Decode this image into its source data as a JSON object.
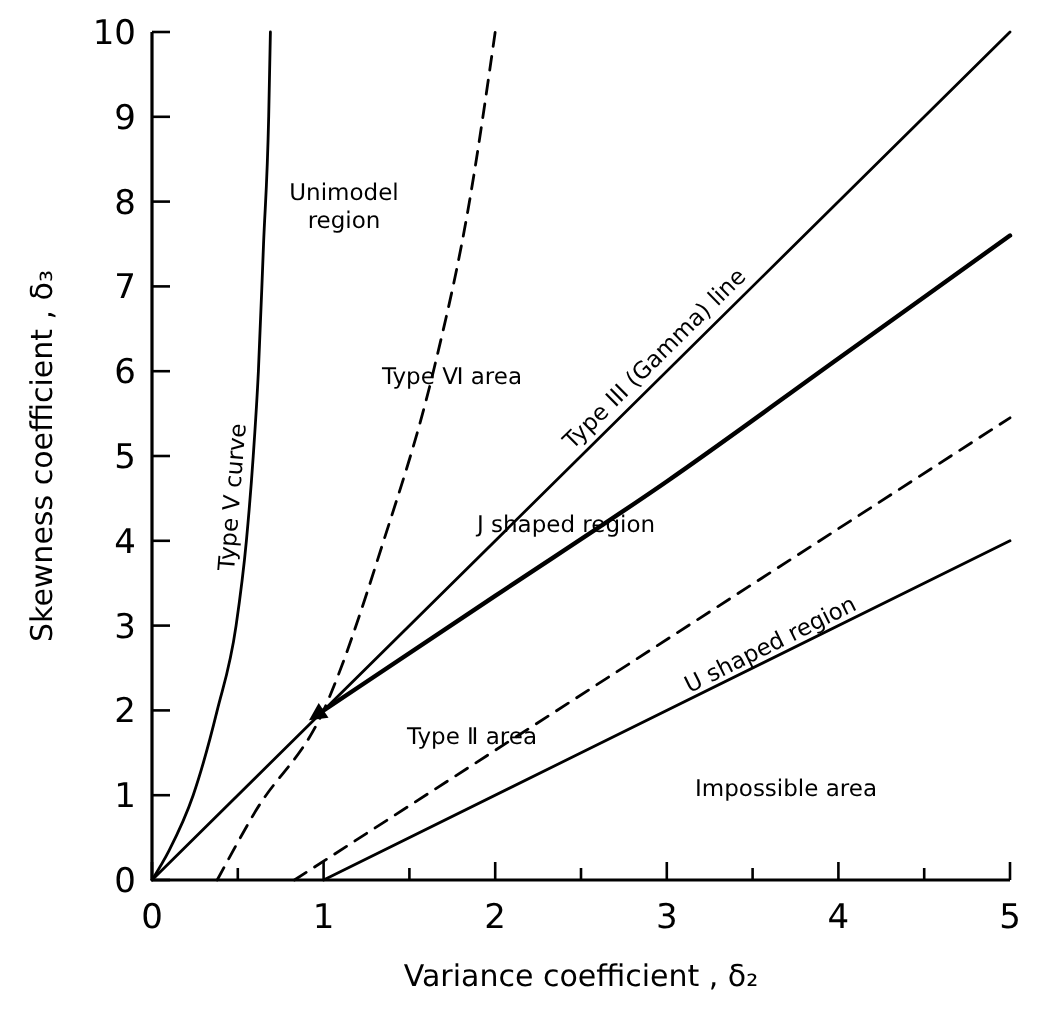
{
  "chart_data": {
    "type": "line",
    "xlabel": "Variance coefficient , δ₂",
    "ylabel": "Skewness coefficient , δ₃",
    "xlim": [
      0,
      5
    ],
    "ylim": [
      0,
      10
    ],
    "xticks": [
      0,
      {
        "value": 0.5,
        "label": null
      },
      1,
      {
        "value": 1.5,
        "label": null
      },
      2,
      {
        "value": 2.5,
        "label": null
      },
      3,
      {
        "value": 3.5,
        "label": null
      },
      4,
      {
        "value": 4.5,
        "label": null
      },
      5
    ],
    "yticks": [
      0,
      1,
      2,
      3,
      4,
      5,
      6,
      7,
      8,
      9,
      10
    ],
    "grid": false,
    "marker": "none",
    "series": [
      {
        "name": "Type V curve",
        "color": "#000000",
        "line_style": "solid",
        "x": [
          0,
          0.1,
          0.24,
          0.38,
          0.49,
          0.55,
          0.59,
          0.62,
          0.65,
          0.68,
          0.69
        ],
        "values": [
          0,
          0.35,
          1,
          2,
          3,
          4,
          5,
          6,
          7.5,
          9,
          10
        ]
      },
      {
        "color": "#000000",
        "line_style": "dashed",
        "x": [
          0.38,
          0.6,
          1,
          1.35,
          1.64,
          1.85,
          2
        ],
        "values": [
          0,
          0.8,
          2,
          4,
          6,
          8,
          10
        ]
      },
      {
        "name": "Type III (Gamma) line",
        "color": "#000000",
        "line_style": "solid",
        "x": [
          0,
          5
        ],
        "values": [
          0,
          10
        ]
      },
      {
        "color": "#000000",
        "line_style": "solid",
        "x": [
          1,
          2,
          3,
          4,
          5
        ],
        "values": [
          2,
          3.35,
          4.7,
          6.15,
          7.6
        ]
      },
      {
        "color": "#000000",
        "line_style": "dashed",
        "x": [
          0.83,
          5
        ],
        "values": [
          0,
          5.45
        ]
      },
      {
        "color": "#000000",
        "line_style": "solid",
        "x": [
          1,
          5
        ],
        "values": [
          0,
          4
        ]
      }
    ],
    "annotations": [
      "Unimodel\nregion",
      "Type Ⅵ area",
      "J shaped region",
      "Type Ⅱ area",
      "U shaped region",
      "Impossible area"
    ]
  }
}
